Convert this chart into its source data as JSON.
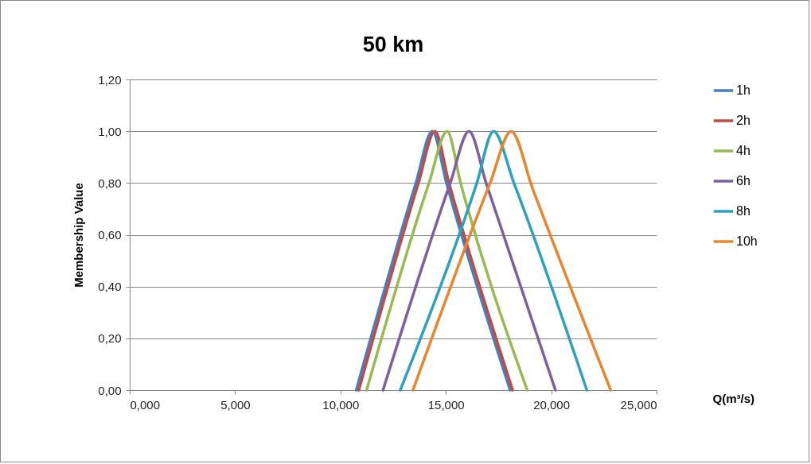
{
  "chart_data": {
    "type": "line",
    "title": "50 km",
    "xlabel": "Q(m³/s)",
    "ylabel": "Membership Value",
    "xlim": [
      0,
      25
    ],
    "xticks": [
      {
        "value": 0,
        "label": "0,000"
      },
      {
        "value": 5,
        "label": "5,000"
      },
      {
        "value": 10,
        "label": "10,000"
      },
      {
        "value": 15,
        "label": "15,000"
      },
      {
        "value": 20,
        "label": "20,000"
      },
      {
        "value": 25,
        "label": "25,000"
      }
    ],
    "ylim": [
      0,
      1.2
    ],
    "yticks": [
      {
        "value": 0,
        "label": "0,00"
      },
      {
        "value": 0.2,
        "label": "0,20"
      },
      {
        "value": 0.4,
        "label": "0,40"
      },
      {
        "value": 0.6,
        "label": "0,60"
      },
      {
        "value": 0.8,
        "label": "0,80"
      },
      {
        "value": 1.0,
        "label": "1,00"
      },
      {
        "value": 1.2,
        "label": "1,20"
      }
    ],
    "grid": "y",
    "legend": "right",
    "marker": "none",
    "series": [
      {
        "name": "1h",
        "color": "#4a7ebb",
        "x": [
          10.75,
          13.58,
          14.36,
          15.03,
          18.05
        ],
        "values": [
          0,
          0.8,
          1,
          0.8,
          0
        ]
      },
      {
        "name": "2h",
        "color": "#be4b48",
        "x": [
          10.87,
          13.7,
          14.48,
          15.15,
          18.17
        ],
        "values": [
          0,
          0.8,
          1,
          0.8,
          0
        ]
      },
      {
        "name": "4h",
        "color": "#98b954",
        "x": [
          11.24,
          14.2,
          15.06,
          15.7,
          18.86
        ],
        "values": [
          0,
          0.8,
          1,
          0.8,
          0
        ]
      },
      {
        "name": "6h",
        "color": "#7d60a0",
        "x": [
          12.02,
          15.21,
          16.1,
          16.91,
          20.2
        ],
        "values": [
          0,
          0.8,
          1,
          0.8,
          0
        ]
      },
      {
        "name": "8h",
        "color": "#31a0bc",
        "x": [
          12.84,
          16.47,
          17.26,
          18.23,
          21.69
        ],
        "values": [
          0,
          0.8,
          1,
          0.8,
          0
        ]
      },
      {
        "name": "10h",
        "color": "#e6862e",
        "x": [
          13.44,
          17.1,
          18.1,
          19.11,
          22.82
        ],
        "values": [
          0,
          0.8,
          1,
          0.78,
          0
        ]
      }
    ]
  }
}
